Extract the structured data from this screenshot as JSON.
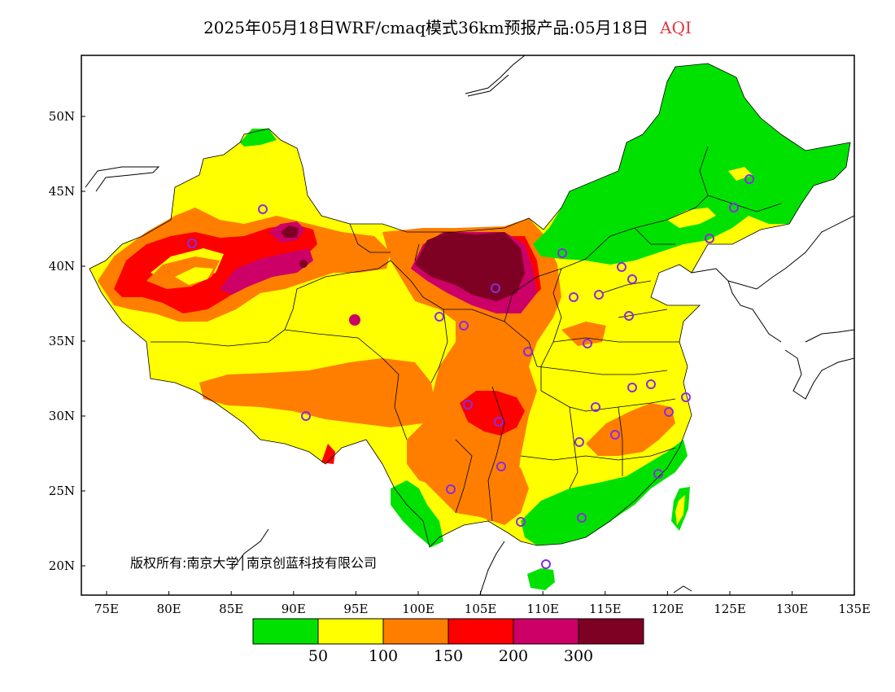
{
  "title": {
    "main": "2025年05月18日WRF/cmaq模式36km预报产品:05月18日",
    "variable": "AQI",
    "variable_color": "#e0383e"
  },
  "axes": {
    "x_ticks": [
      "75E",
      "80E",
      "85E",
      "90E",
      "95E",
      "100E",
      "105E",
      "110E",
      "115E",
      "120E",
      "125E",
      "130E",
      "135E"
    ],
    "y_ticks": [
      "20N",
      "25N",
      "30N",
      "35N",
      "40N",
      "45N",
      "50N"
    ]
  },
  "copyright": "版权所有:南京大学│南京创蓝科技有限公司",
  "colorbar": {
    "colors": [
      "#00e100",
      "#ffff00",
      "#ff7e00",
      "#ff0000",
      "#cc0066",
      "#7e0023"
    ],
    "labels": [
      "50",
      "100",
      "150",
      "200",
      "300"
    ]
  },
  "palette": {
    "good": "#00e100",
    "moderate": "#ffff00",
    "usg": "#ff7e00",
    "unhealthy": "#ff0000",
    "very_unhealthy": "#cc0066",
    "hazardous": "#7e0023",
    "city_marker": "#8a2be2"
  }
}
